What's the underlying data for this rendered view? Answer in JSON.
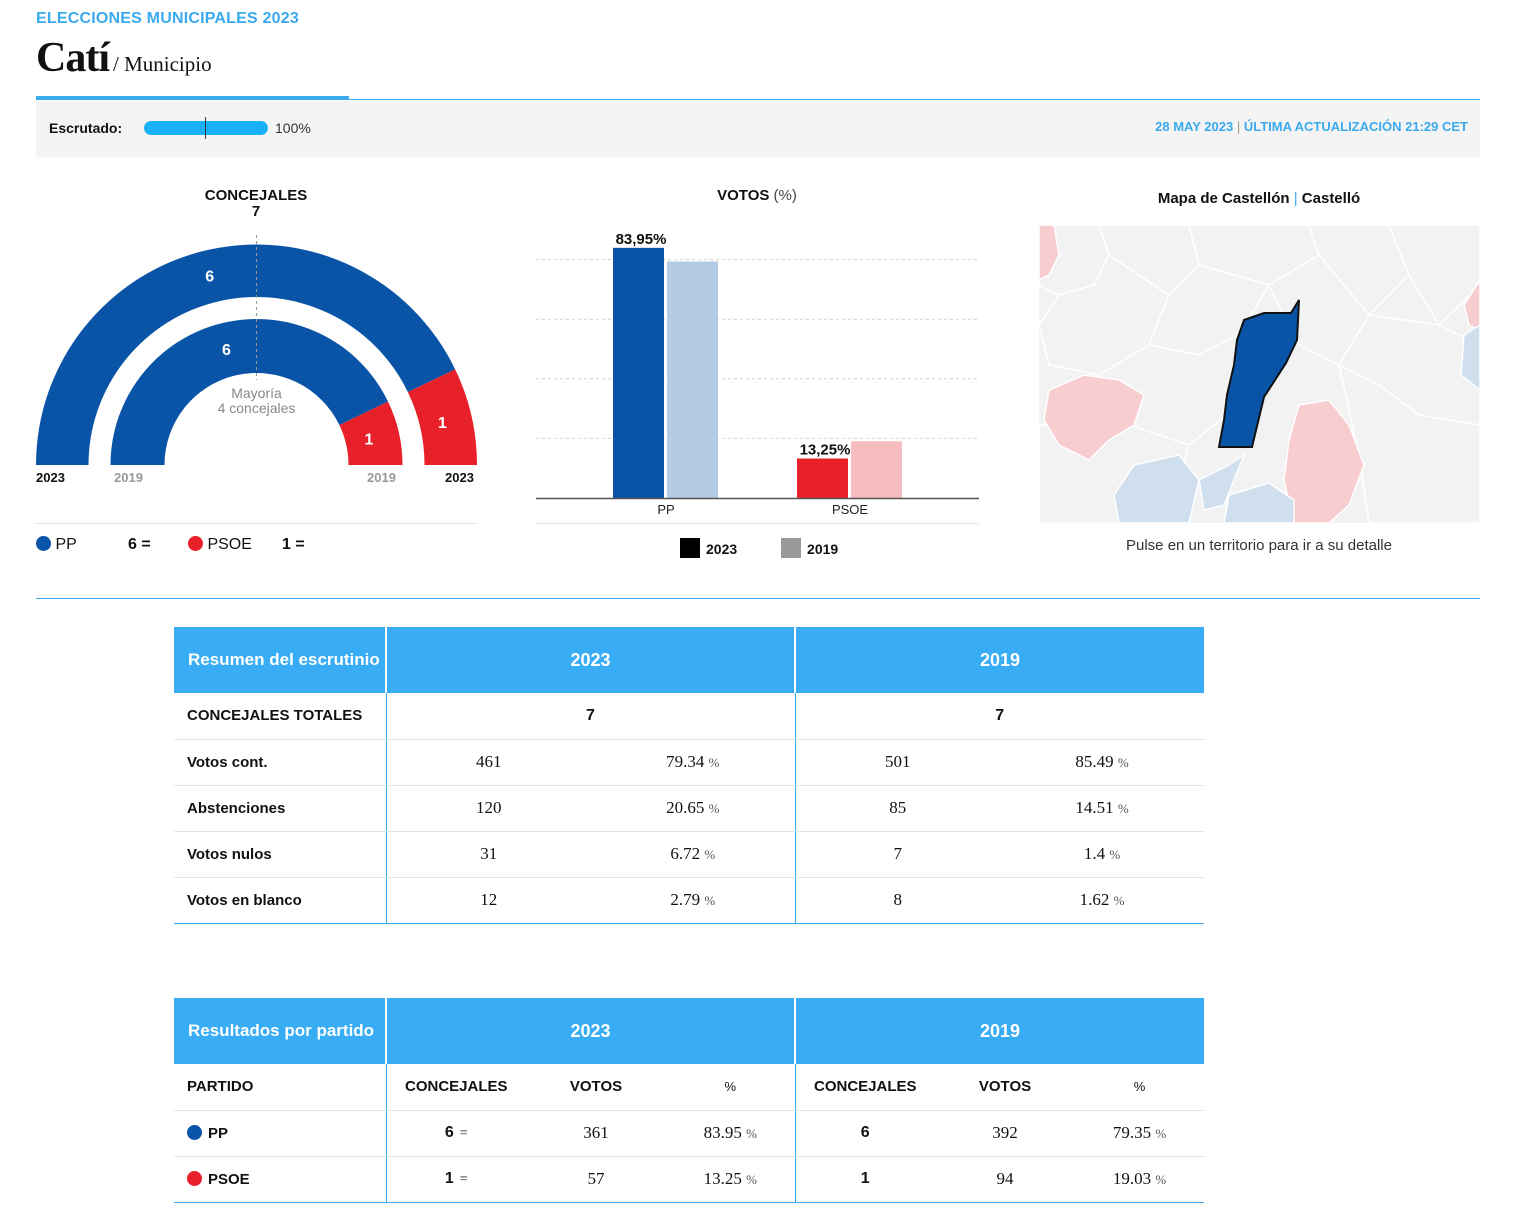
{
  "header": {
    "supertitle": "ELECCIONES MUNICIPALES 2023",
    "title": "Catí",
    "subtitle": "/ Municipio"
  },
  "status": {
    "escrutado_label": "Escrutado:",
    "escrutado_value": "100%",
    "escrutado_fraction": 1.0,
    "date": "28 MAY 2023",
    "separator": "|",
    "update": "ÚLTIMA ACTUALIZACIÓN 21:29 CET"
  },
  "concejales": {
    "title": "CONCEJALES",
    "total": "7",
    "majority_line1": "Mayoría",
    "majority_line2": "4 concejales",
    "year_2023": "2023",
    "year_2019": "2019",
    "seats_2023": [
      {
        "party": "PP",
        "seats": 6,
        "color": "#0a54a8"
      },
      {
        "party": "PSOE",
        "seats": 1,
        "color": "#e8202a"
      }
    ],
    "seats_2019": [
      {
        "party": "PP",
        "seats": 6,
        "color": "#0a54a8"
      },
      {
        "party": "PSOE",
        "seats": 1,
        "color": "#e8202a"
      }
    ]
  },
  "legend": [
    {
      "party": "PP",
      "value": "6 =",
      "color": "#0a54a8"
    },
    {
      "party": "PSOE",
      "value": "1 =",
      "color": "#e8202a"
    }
  ],
  "votos": {
    "title": "VOTOS",
    "unit": "(%)",
    "legend_2023": "2023",
    "legend_2019": "2019",
    "legend_2023_color": "#000000",
    "legend_2019_color": "#999999"
  },
  "chart_data": {
    "type": "bar",
    "categories": [
      "PP",
      "PSOE"
    ],
    "series": [
      {
        "name": "2023",
        "values": [
          83.95,
          13.25
        ],
        "colors": [
          "#0a54a8",
          "#e8202a"
        ]
      },
      {
        "name": "2019",
        "values": [
          79.35,
          19.03
        ],
        "colors": [
          "#b3cce4",
          "#f6bcc0"
        ]
      }
    ],
    "data_labels": [
      "83,95%",
      "13,25%"
    ],
    "ylim": [
      0,
      100
    ],
    "grid": true
  },
  "map": {
    "title": "Mapa de Castellón",
    "separator": "|",
    "title_alt": "Castelló",
    "hint": "Pulse en un territorio para ir a su detalle",
    "highlight_color": "#0a54a8"
  },
  "summary_table": {
    "header": [
      "Resumen del escrutinio",
      "2023",
      "2019"
    ],
    "rows": [
      {
        "label": "CONCEJALES TOTALES",
        "v2023": "7",
        "v2019": "7"
      },
      {
        "label": "Votos cont.",
        "n2023": "461",
        "p2023": "79.34",
        "n2019": "501",
        "p2019": "85.49"
      },
      {
        "label": "Abstenciones",
        "n2023": "120",
        "p2023": "20.65",
        "n2019": "85",
        "p2019": "14.51"
      },
      {
        "label": "Votos nulos",
        "n2023": "31",
        "p2023": "6.72",
        "n2019": "7",
        "p2019": "1.4"
      },
      {
        "label": "Votos en blanco",
        "n2023": "12",
        "p2023": "2.79",
        "n2019": "8",
        "p2019": "1.62"
      }
    ],
    "pct_sign": "%"
  },
  "party_table": {
    "header": [
      "Resultados por partido",
      "2023",
      "2019"
    ],
    "subheader": [
      "PARTIDO",
      "CONCEJALES",
      "VOTOS",
      "%",
      "CONCEJALES",
      "VOTOS",
      "%"
    ],
    "rows": [
      {
        "party": "PP",
        "color": "#0a54a8",
        "c2023": "6",
        "diff": "=",
        "v2023": "361",
        "p2023": "83.95",
        "c2019": "6",
        "v2019": "392",
        "p2019": "79.35"
      },
      {
        "party": "PSOE",
        "color": "#e8202a",
        "c2023": "1",
        "diff": "=",
        "v2023": "57",
        "p2023": "13.25",
        "c2019": "1",
        "v2019": "94",
        "p2019": "19.03"
      }
    ]
  }
}
